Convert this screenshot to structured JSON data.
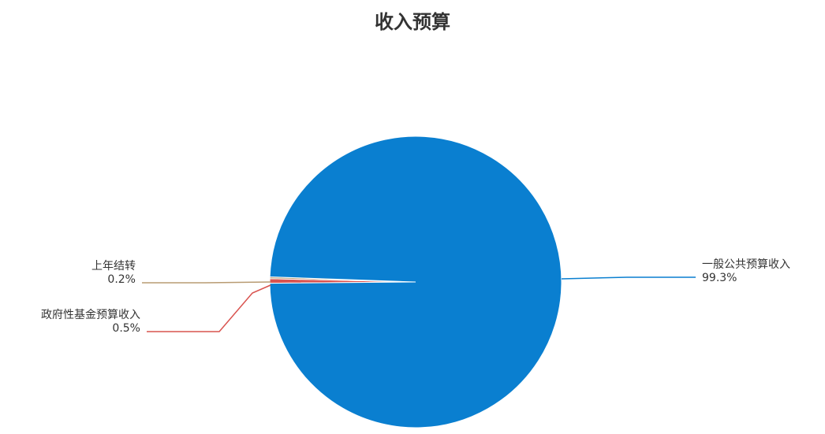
{
  "chart_data": {
    "type": "pie",
    "title": "收入预算",
    "series": [
      {
        "name": "一般公共预算收入",
        "percent_label": "99.3%",
        "value": 99.3,
        "color": "#0a7fd0"
      },
      {
        "name": "政府性基金预算收入",
        "percent_label": "0.5%",
        "value": 0.5,
        "color": "#d9534f"
      },
      {
        "name": "上年结转",
        "percent_label": "0.2%",
        "value": 0.2,
        "color": "#b89b72"
      }
    ]
  }
}
